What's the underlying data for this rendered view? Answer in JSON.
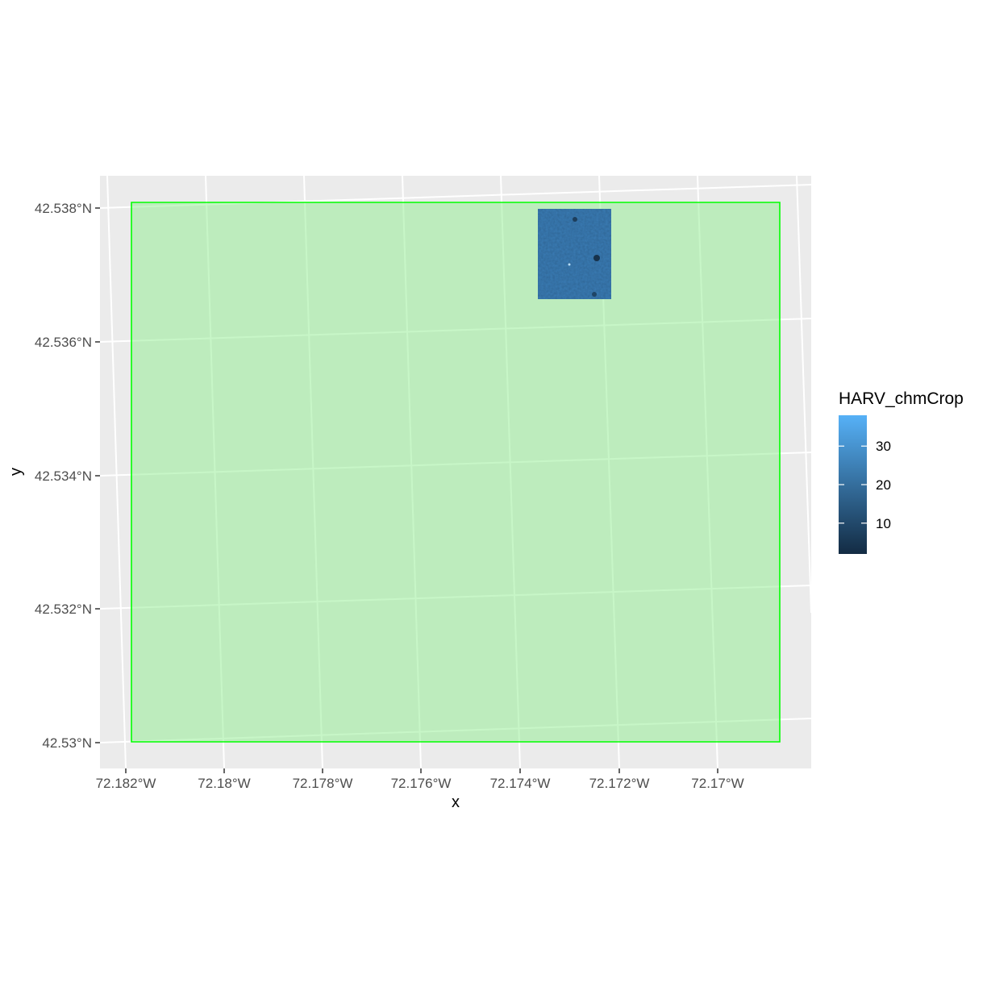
{
  "chart_data": {
    "type": "map",
    "xlabel": "x",
    "ylabel": "y",
    "x_ticks": [
      "72.182°W",
      "72.18°W",
      "72.178°W",
      "72.176°W",
      "72.174°W",
      "72.172°W",
      "72.17°W"
    ],
    "y_ticks": [
      "42.538°N",
      "42.536°N",
      "42.534°N",
      "42.532°N",
      "42.53°N"
    ],
    "grid": true,
    "panel_background": "#ebebeb",
    "layers": [
      {
        "kind": "polygon",
        "role": "crop-extent",
        "fill": "#90EE90",
        "fill_opacity": 0.5,
        "stroke": "#00ff00"
      },
      {
        "kind": "raster",
        "role": "canopy-height",
        "name": "HARV_chmCrop"
      }
    ],
    "legend": {
      "title": "HARV_chmCrop",
      "placement": "right",
      "breaks": [
        "30",
        "20",
        "10"
      ],
      "range": [
        2,
        38
      ],
      "color_low": "#132B43",
      "color_high": "#56B1F7"
    }
  }
}
